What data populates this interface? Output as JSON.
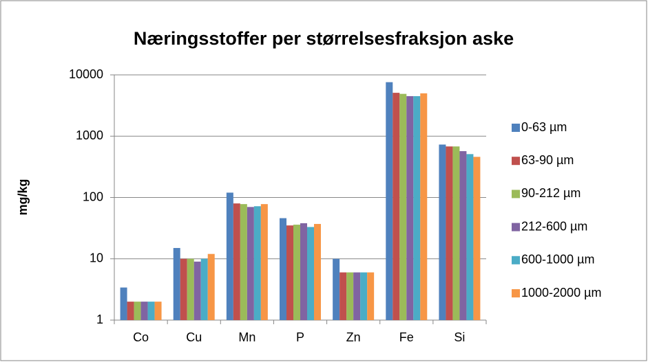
{
  "chart_data": {
    "type": "bar",
    "title": "Næringsstoffer per størrelsesfraksjon aske",
    "y_label": "mg/kg",
    "categories": [
      "Co",
      "Cu",
      "Mn",
      "P",
      "Zn",
      "Fe",
      "Si"
    ],
    "series": [
      {
        "name": "0-63 µm",
        "color": "#4f81bd",
        "values": [
          3.4,
          15,
          120,
          46,
          10,
          7600,
          730
        ]
      },
      {
        "name": "63-90 µm",
        "color": "#c0504d",
        "values": [
          2,
          10,
          80,
          35,
          6,
          5100,
          680
        ]
      },
      {
        "name": "90-212 µm",
        "color": "#9bbb59",
        "values": [
          2,
          10,
          78,
          36,
          6,
          4900,
          680
        ]
      },
      {
        "name": "212-600 µm",
        "color": "#8064a2",
        "values": [
          2,
          9,
          70,
          38,
          6,
          4500,
          570
        ]
      },
      {
        "name": "600-1000 µm",
        "color": "#4bacc6",
        "values": [
          2,
          10,
          72,
          33,
          6,
          4500,
          510
        ]
      },
      {
        "name": "1000-2000 µm",
        "color": "#f79646",
        "values": [
          2,
          12,
          78,
          37,
          6,
          5000,
          460
        ]
      }
    ],
    "log_scale": true,
    "ylim": [
      1,
      10000
    ],
    "yticks": [
      1,
      10,
      100,
      1000,
      10000
    ],
    "grid": true,
    "legend": "right"
  }
}
